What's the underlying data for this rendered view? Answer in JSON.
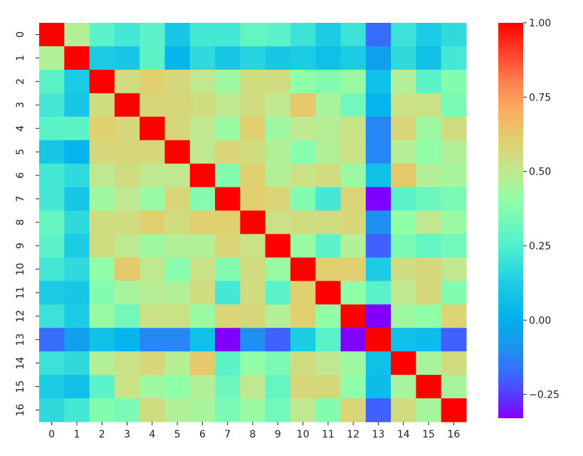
{
  "chart_data": {
    "type": "heatmap",
    "title": "",
    "xlabel": "",
    "ylabel": "",
    "colormap": "rainbow",
    "vmin": -0.33,
    "vmax": 1.0,
    "x_labels": [
      "0",
      "1",
      "2",
      "3",
      "4",
      "5",
      "6",
      "7",
      "8",
      "9",
      "10",
      "11",
      "12",
      "13",
      "14",
      "15",
      "16"
    ],
    "y_labels": [
      "0",
      "1",
      "2",
      "3",
      "4",
      "5",
      "6",
      "7",
      "8",
      "9",
      "10",
      "11",
      "12",
      "13",
      "14",
      "15",
      "16"
    ],
    "colorbar_ticks": [
      {
        "value": 1.0,
        "label": "1.00"
      },
      {
        "value": 0.75,
        "label": "0.75"
      },
      {
        "value": 0.5,
        "label": "0.50"
      },
      {
        "value": 0.25,
        "label": "0.25"
      },
      {
        "value": 0.0,
        "label": "0.00"
      },
      {
        "value": -0.25,
        "label": "−0.25"
      }
    ],
    "values": [
      [
        1.0,
        0.47,
        0.28,
        0.22,
        0.28,
        0.1,
        0.22,
        0.22,
        0.3,
        0.28,
        0.2,
        0.12,
        0.2,
        -0.17,
        0.2,
        0.12,
        0.17
      ],
      [
        0.47,
        1.0,
        0.12,
        0.1,
        0.28,
        0.02,
        0.17,
        0.1,
        0.15,
        0.1,
        0.12,
        0.07,
        0.12,
        -0.05,
        0.17,
        0.07,
        0.22
      ],
      [
        0.28,
        0.12,
        1.0,
        0.55,
        0.6,
        0.57,
        0.5,
        0.43,
        0.55,
        0.55,
        0.4,
        0.37,
        0.42,
        0.07,
        0.47,
        0.28,
        0.37
      ],
      [
        0.22,
        0.1,
        0.55,
        1.0,
        0.57,
        0.57,
        0.55,
        0.5,
        0.55,
        0.5,
        0.62,
        0.45,
        0.33,
        0.02,
        0.53,
        0.53,
        0.35
      ],
      [
        0.28,
        0.28,
        0.6,
        0.57,
        1.0,
        0.57,
        0.5,
        0.42,
        0.6,
        0.43,
        0.5,
        0.48,
        0.53,
        -0.12,
        0.57,
        0.43,
        0.55
      ],
      [
        0.1,
        0.02,
        0.57,
        0.57,
        0.57,
        1.0,
        0.5,
        0.58,
        0.55,
        0.47,
        0.38,
        0.47,
        0.53,
        -0.12,
        0.48,
        0.4,
        0.47
      ],
      [
        0.22,
        0.17,
        0.5,
        0.55,
        0.5,
        0.5,
        1.0,
        0.37,
        0.6,
        0.47,
        0.53,
        0.55,
        0.42,
        0.07,
        0.62,
        0.47,
        0.45
      ],
      [
        0.22,
        0.1,
        0.43,
        0.5,
        0.42,
        0.58,
        0.37,
        1.0,
        0.6,
        0.58,
        0.37,
        0.22,
        0.58,
        -0.33,
        0.28,
        0.32,
        0.35
      ],
      [
        0.3,
        0.17,
        0.55,
        0.55,
        0.6,
        0.55,
        0.6,
        0.6,
        1.0,
        0.53,
        0.55,
        0.55,
        0.57,
        -0.1,
        0.4,
        0.5,
        0.42
      ],
      [
        0.28,
        0.12,
        0.55,
        0.5,
        0.43,
        0.47,
        0.47,
        0.58,
        0.53,
        1.0,
        0.42,
        0.28,
        0.47,
        -0.2,
        0.35,
        0.3,
        0.33
      ],
      [
        0.22,
        0.17,
        0.4,
        0.62,
        0.5,
        0.38,
        0.53,
        0.37,
        0.55,
        0.42,
        1.0,
        0.6,
        0.6,
        0.12,
        0.55,
        0.57,
        0.5
      ],
      [
        0.12,
        0.1,
        0.37,
        0.45,
        0.48,
        0.47,
        0.55,
        0.22,
        0.55,
        0.28,
        0.6,
        1.0,
        0.4,
        0.27,
        0.5,
        0.57,
        0.37
      ],
      [
        0.2,
        0.12,
        0.42,
        0.33,
        0.53,
        0.53,
        0.42,
        0.58,
        0.57,
        0.47,
        0.6,
        0.4,
        1.0,
        -0.33,
        0.43,
        0.4,
        0.58
      ],
      [
        -0.17,
        -0.05,
        0.07,
        0.02,
        -0.12,
        -0.12,
        0.07,
        -0.33,
        -0.1,
        -0.2,
        0.12,
        0.27,
        -0.33,
        1.0,
        0.07,
        0.05,
        -0.2
      ],
      [
        0.2,
        0.17,
        0.47,
        0.53,
        0.57,
        0.48,
        0.62,
        0.28,
        0.4,
        0.35,
        0.55,
        0.5,
        0.43,
        0.07,
        1.0,
        0.45,
        0.55
      ],
      [
        0.12,
        0.07,
        0.28,
        0.53,
        0.43,
        0.4,
        0.47,
        0.32,
        0.5,
        0.3,
        0.57,
        0.57,
        0.4,
        0.05,
        0.45,
        1.0,
        0.45
      ],
      [
        0.17,
        0.22,
        0.37,
        0.35,
        0.55,
        0.47,
        0.45,
        0.35,
        0.42,
        0.33,
        0.5,
        0.37,
        0.58,
        -0.2,
        0.55,
        0.45,
        1.0
      ]
    ]
  }
}
